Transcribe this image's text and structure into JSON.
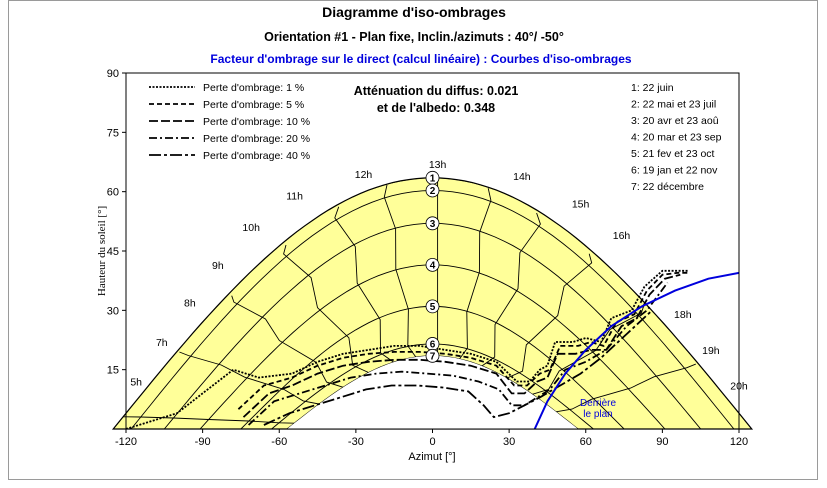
{
  "window": {
    "title": "Diagramme d'iso-ombrages",
    "subtitle": "Orientation #1 - Plan fixe, Inclin./azimuts : 40°/ -50°"
  },
  "chart_data": {
    "type": "line",
    "title": "Facteur d'ombrage sur le direct (calcul linéaire) : Courbes d'iso-ombrages",
    "xlabel": "Azimut [°]",
    "ylabel": "Hauteur du soleil [°]",
    "xlim": [
      -120,
      120
    ],
    "ylim": [
      0,
      90
    ],
    "xticks": [
      -120,
      -90,
      -60,
      -30,
      0,
      30,
      60,
      90,
      120
    ],
    "yticks": [
      15,
      30,
      45,
      60,
      75,
      90
    ],
    "grid": false,
    "sun_area_color": "#ffff99",
    "attenuation": {
      "line1": "Atténuation du diffus: 0.021",
      "line2": "et de l'albedo: 0.348"
    },
    "legend": {
      "placement": "top-left",
      "entries": [
        {
          "label": "Perte d'ombrage: 1 %",
          "dash": "2,1.5"
        },
        {
          "label": "Perte d'ombrage: 5 %",
          "dash": "5,3"
        },
        {
          "label": "Perte d'ombrage: 10 %",
          "dash": "9,3"
        },
        {
          "label": "Perte d'ombrage: 20 %",
          "dash": "8,3,2,3"
        },
        {
          "label": "Perte d'ombrage: 40 %",
          "dash": "12,3,3,3"
        }
      ]
    },
    "day_legend": {
      "placement": "top-right",
      "entries": [
        {
          "num": "1",
          "text": "1: 22 juin"
        },
        {
          "num": "2",
          "text": "2: 22 mai et 23 juil"
        },
        {
          "num": "3",
          "text": "3: 20 avr et 23 aoû"
        },
        {
          "num": "4",
          "text": "4: 20 mar et 23 sep"
        },
        {
          "num": "5",
          "text": "5: 21 fev et 23 oct"
        },
        {
          "num": "6",
          "text": "6: 19 jan et 22 nov"
        },
        {
          "num": "7",
          "text": "7: 22 décembre"
        }
      ]
    },
    "sun_paths": [
      {
        "num": "1",
        "max_alt": 63.5,
        "half_width": 125
      },
      {
        "num": "2",
        "max_alt": 60.3,
        "half_width": 118
      },
      {
        "num": "3",
        "max_alt": 52.0,
        "half_width": 105
      },
      {
        "num": "4",
        "max_alt": 41.5,
        "half_width": 91
      },
      {
        "num": "5",
        "max_alt": 31.0,
        "half_width": 75
      },
      {
        "num": "6",
        "max_alt": 21.5,
        "half_width": 63
      },
      {
        "num": "7",
        "max_alt": 18.5,
        "half_width": 57
      }
    ],
    "hour_labels": [
      {
        "label": "5h",
        "x": -116,
        "y": 11
      },
      {
        "label": "7h",
        "x": -106,
        "y": 21
      },
      {
        "label": "8h",
        "x": -95,
        "y": 31
      },
      {
        "label": "9h",
        "x": -84,
        "y": 40.5
      },
      {
        "label": "10h",
        "x": -71,
        "y": 50
      },
      {
        "label": "11h",
        "x": -54,
        "y": 58
      },
      {
        "label": "12h",
        "x": -27,
        "y": 63.5
      },
      {
        "label": "13h",
        "x": 2,
        "y": 66
      },
      {
        "label": "14h",
        "x": 35,
        "y": 63
      },
      {
        "label": "15h",
        "x": 58,
        "y": 56
      },
      {
        "label": "16h",
        "x": 74,
        "y": 48
      },
      {
        "label": "18h",
        "x": 98,
        "y": 28
      },
      {
        "label": "19h",
        "x": 109,
        "y": 19
      },
      {
        "label": "20h",
        "x": 120,
        "y": 10
      }
    ],
    "behind_plane": {
      "label1": "Derrière",
      "label2": "le plan",
      "color": "#0000dd",
      "x": [
        40,
        45,
        52,
        60,
        70,
        82,
        95,
        108,
        120
      ],
      "y": [
        0,
        7,
        14,
        20,
        26,
        31,
        35,
        38,
        39.5
      ]
    },
    "iso_series": [
      {
        "name": "Perte d'ombrage: 1 %",
        "x": [
          -120,
          -100,
          -88,
          -78,
          -68,
          -55,
          -45,
          -35,
          -25,
          -15,
          -5,
          5,
          15,
          25,
          33,
          38,
          42,
          45,
          48,
          55,
          60,
          66,
          70,
          78,
          83,
          90,
          95,
          100
        ],
        "y": [
          0,
          4,
          10,
          15,
          13,
          14,
          17,
          19,
          20,
          21,
          21,
          20,
          19,
          17,
          12,
          12,
          15,
          16,
          22,
          22,
          23,
          22,
          28,
          30,
          36,
          40,
          40,
          40
        ]
      },
      {
        "name": "Perte d'ombrage: 5 %",
        "x": [
          -76,
          -66,
          -55,
          -45,
          -35,
          -25,
          -15,
          -5,
          5,
          15,
          25,
          32,
          37,
          42,
          46,
          50,
          57,
          62,
          67,
          72,
          79,
          84,
          90,
          96,
          100
        ],
        "y": [
          5,
          11,
          13,
          16,
          18,
          19,
          19.5,
          19.5,
          19,
          18,
          16,
          11,
          11,
          14,
          15,
          21,
          21,
          22,
          21,
          27,
          29,
          35,
          39,
          39.5,
          39.5
        ]
      },
      {
        "name": "Perte d'ombrage: 10 %",
        "x": [
          -74,
          -64,
          -55,
          -45,
          -35,
          -25,
          -15,
          -5,
          5,
          15,
          25,
          31,
          36,
          41,
          45,
          49,
          56,
          62,
          68,
          74,
          80,
          85,
          91,
          97
        ],
        "y": [
          3,
          9,
          11,
          14,
          16,
          17,
          17.5,
          17.5,
          17,
          16,
          14,
          9,
          9,
          12,
          13,
          19,
          19,
          20,
          20,
          26,
          28,
          34,
          38,
          39
        ]
      },
      {
        "name": "Perte d'ombrage: 20 %",
        "x": [
          -72,
          -62,
          -52,
          -42,
          -32,
          -22,
          -12,
          -2,
          8,
          18,
          26,
          31,
          36,
          41,
          46,
          52,
          60,
          68,
          76,
          84,
          92
        ],
        "y": [
          1,
          7,
          9,
          11,
          13,
          14,
          14.5,
          14,
          13.5,
          12,
          10,
          6,
          6,
          8,
          10,
          15,
          17,
          20,
          26,
          30,
          37
        ]
      },
      {
        "name": "Perte d'ombrage: 40 %",
        "x": [
          -66,
          -56,
          -46,
          -36,
          -26,
          -16,
          -6,
          4,
          14,
          20,
          24,
          30,
          36,
          42,
          50,
          58,
          66,
          76,
          86
        ],
        "y": [
          1,
          4,
          6,
          8,
          10,
          11,
          11,
          10.5,
          9.5,
          6,
          3,
          4,
          6,
          8,
          11,
          14,
          18,
          24,
          30
        ]
      }
    ]
  }
}
